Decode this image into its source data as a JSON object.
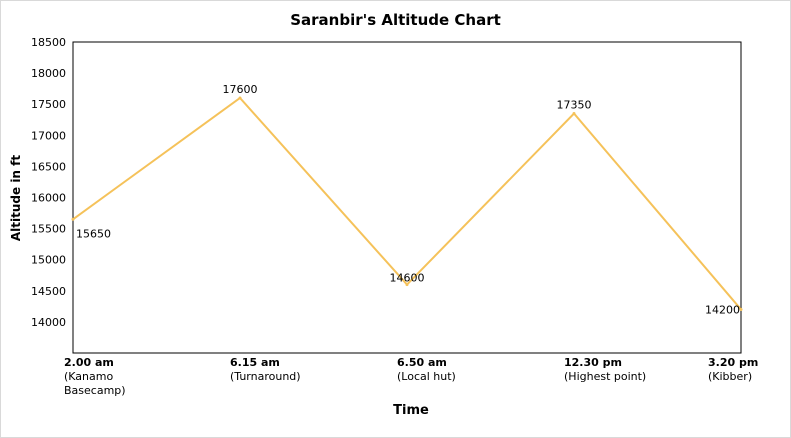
{
  "chart_data": {
    "type": "line",
    "title": "Saranbir's Altitude Chart",
    "xlabel": "Time",
    "ylabel": "Altitude in ft",
    "categories": [
      {
        "time": "2.00 am",
        "label": "(Kanamo Basecamp)"
      },
      {
        "time": "6.15 am",
        "label": "(Turnaround)"
      },
      {
        "time": "6.50 am",
        "label": "(Local hut)"
      },
      {
        "time": "12.30 pm",
        "label": "(Highest point)"
      },
      {
        "time": "3.20 pm",
        "label": "(Kibber)"
      }
    ],
    "series": [
      {
        "values": [
          15650,
          17600,
          14600,
          17350,
          14200
        ],
        "data_labels": [
          "15650",
          "17600",
          "14600",
          "17350",
          "14200"
        ]
      }
    ],
    "yticks": [
      "18500",
      "18000",
      "17500",
      "17000",
      "16500",
      "16000",
      "15500",
      "15000",
      "14500",
      "14000"
    ],
    "ylim": [
      13500,
      18500
    ],
    "grid": false,
    "legend": "none",
    "line_color": "#f5c25a"
  }
}
